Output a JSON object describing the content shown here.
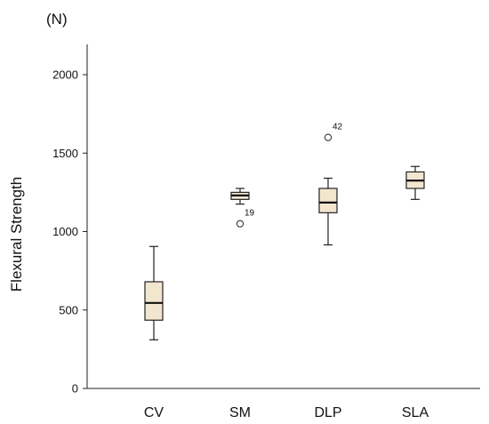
{
  "chart_data": {
    "type": "boxplot",
    "unit_label": "(N)",
    "xlabel": "",
    "ylabel": "Flexural Strength",
    "ylim": [
      0,
      2000
    ],
    "yticks": [
      0,
      500,
      1000,
      1500,
      2000
    ],
    "categories": [
      "CV",
      "SM",
      "DLP",
      "SLA"
    ],
    "boxes": [
      {
        "category": "CV",
        "min": 310,
        "q1": 435,
        "median": 545,
        "q3": 680,
        "max": 905
      },
      {
        "category": "SM",
        "min": 1175,
        "q1": 1205,
        "median": 1230,
        "q3": 1250,
        "max": 1275
      },
      {
        "category": "DLP",
        "min": 915,
        "q1": 1120,
        "median": 1185,
        "q3": 1275,
        "max": 1340
      },
      {
        "category": "SLA",
        "min": 1205,
        "q1": 1275,
        "median": 1325,
        "q3": 1380,
        "max": 1415
      }
    ],
    "outliers": [
      {
        "category": "SM",
        "value": 1050,
        "label": "19"
      },
      {
        "category": "DLP",
        "value": 1600,
        "label": "42"
      }
    ],
    "box_color": "#f2e6cf",
    "grid": false
  }
}
